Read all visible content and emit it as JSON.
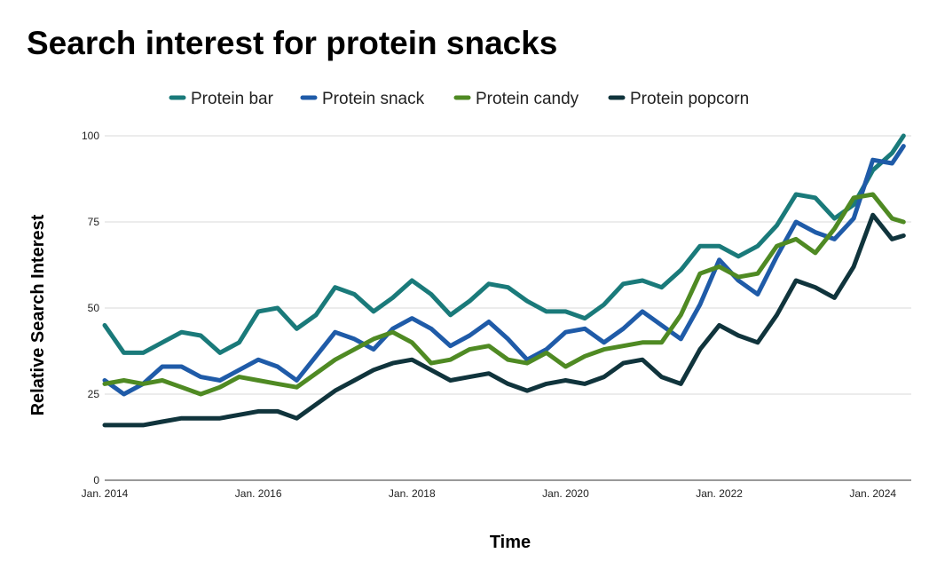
{
  "chart_data": {
    "type": "line",
    "title": "Search interest for protein snacks",
    "xlabel": "Time",
    "ylabel": "Relative Search Interest",
    "ylim": [
      0,
      100
    ],
    "yticks": [
      0,
      25,
      50,
      75,
      100
    ],
    "xlim": [
      2014.0,
      2024.5
    ],
    "xticks": [
      {
        "value": 2014,
        "label": "Jan. 2014"
      },
      {
        "value": 2016,
        "label": "Jan. 2016"
      },
      {
        "value": 2018,
        "label": "Jan. 2018"
      },
      {
        "value": 2020,
        "label": "Jan. 2020"
      },
      {
        "value": 2022,
        "label": "Jan. 2022"
      },
      {
        "value": 2024,
        "label": "Jan. 2024"
      }
    ],
    "grid": true,
    "legend_position": "top",
    "x": [
      2014.0,
      2014.25,
      2014.5,
      2014.75,
      2015.0,
      2015.25,
      2015.5,
      2015.75,
      2016.0,
      2016.25,
      2016.5,
      2016.75,
      2017.0,
      2017.25,
      2017.5,
      2017.75,
      2018.0,
      2018.25,
      2018.5,
      2018.75,
      2019.0,
      2019.25,
      2019.5,
      2019.75,
      2020.0,
      2020.25,
      2020.5,
      2020.75,
      2021.0,
      2021.25,
      2021.5,
      2021.75,
      2022.0,
      2022.25,
      2022.5,
      2022.75,
      2023.0,
      2023.25,
      2023.5,
      2023.75,
      2024.0,
      2024.25,
      2024.4
    ],
    "series": [
      {
        "name": "Protein bar",
        "color": "#1a7a7a",
        "values": [
          45,
          37,
          37,
          40,
          43,
          42,
          37,
          40,
          49,
          50,
          44,
          48,
          56,
          54,
          49,
          53,
          58,
          54,
          48,
          52,
          57,
          56,
          52,
          49,
          49,
          47,
          51,
          57,
          58,
          56,
          61,
          68,
          68,
          65,
          68,
          74,
          83,
          82,
          76,
          80,
          90,
          95,
          100
        ]
      },
      {
        "name": "Protein snack",
        "color": "#1f5ba8",
        "values": [
          29,
          25,
          28,
          33,
          33,
          30,
          29,
          32,
          35,
          33,
          29,
          36,
          43,
          41,
          38,
          44,
          47,
          44,
          39,
          42,
          46,
          41,
          35,
          38,
          43,
          44,
          40,
          44,
          49,
          45,
          41,
          51,
          64,
          58,
          54,
          65,
          75,
          72,
          70,
          76,
          93,
          92,
          97
        ]
      },
      {
        "name": "Protein candy",
        "color": "#4f8a23",
        "values": [
          28,
          29,
          28,
          29,
          27,
          25,
          27,
          30,
          29,
          28,
          27,
          31,
          35,
          38,
          41,
          43,
          40,
          34,
          35,
          38,
          39,
          35,
          34,
          37,
          33,
          36,
          38,
          39,
          40,
          40,
          48,
          60,
          62,
          59,
          60,
          68,
          70,
          66,
          73,
          82,
          83,
          76,
          75
        ]
      },
      {
        "name": "Protein popcorn",
        "color": "#10343c",
        "values": [
          16,
          16,
          16,
          17,
          18,
          18,
          18,
          19,
          20,
          20,
          18,
          22,
          26,
          29,
          32,
          34,
          35,
          32,
          29,
          30,
          31,
          28,
          26,
          28,
          29,
          28,
          30,
          34,
          35,
          30,
          28,
          38,
          45,
          42,
          40,
          48,
          58,
          56,
          53,
          62,
          77,
          70,
          71
        ]
      }
    ]
  }
}
